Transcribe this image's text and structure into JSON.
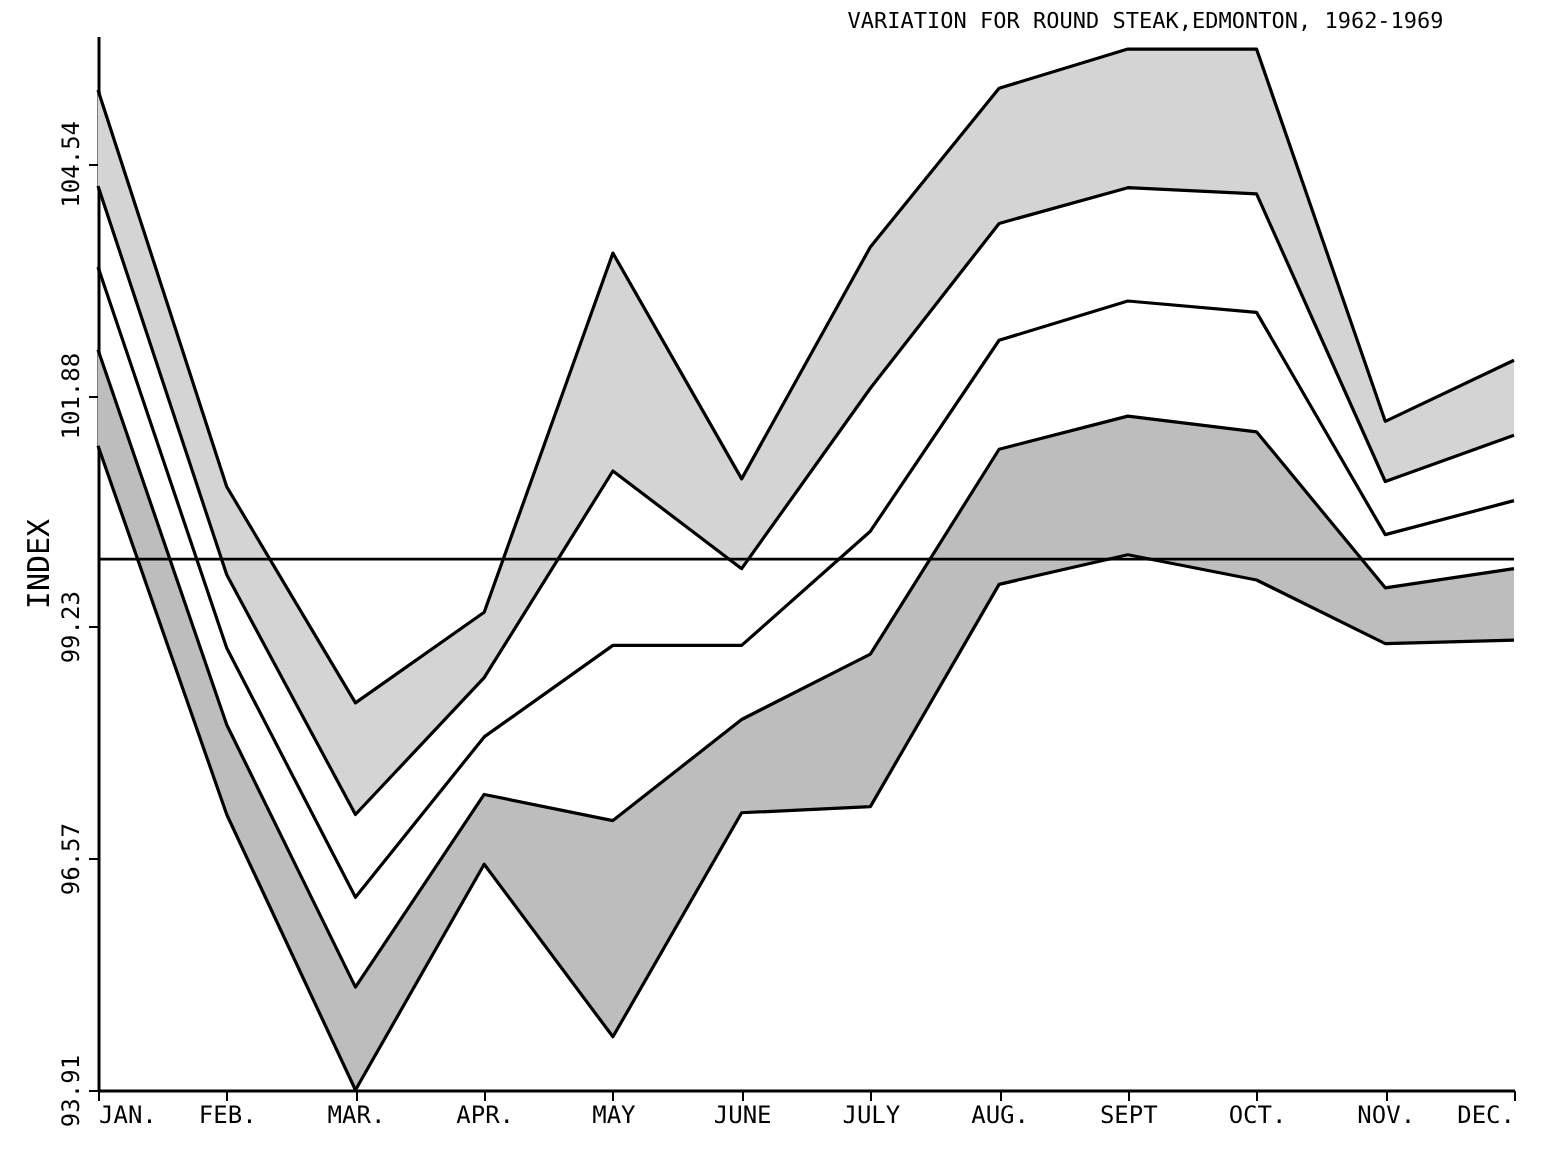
{
  "chart_data": {
    "type": "line",
    "title": "VARIATION FOR ROUND STEAK,EDMONTON, 1962-1969",
    "ylabel": "INDEX",
    "categories": [
      "JAN.",
      "FEB.",
      "MAR.",
      "APR.",
      "MAY",
      "JUNE",
      "JULY",
      "AUG.",
      "SEPT",
      "OCT.",
      "NOV.",
      "DEC."
    ],
    "series": [
      {
        "color": "#000000",
        "values": [
          105.38,
          100.83,
          98.35,
          99.39,
          103.51,
          100.92,
          103.58,
          105.4,
          105.85,
          105.85,
          101.58,
          102.28
        ],
        "upper": [
          105.38,
          100.83,
          98.35,
          99.39,
          103.51,
          100.92,
          103.58,
          105.4,
          105.85,
          105.85,
          101.58,
          102.28
        ],
        "lower": [
          104.28,
          99.82,
          97.07,
          98.64,
          101.01,
          99.89,
          101.96,
          103.85,
          104.26,
          104.19,
          100.89,
          101.42
        ]
      },
      {
        "color": "#000000",
        "values": [
          104.28,
          99.82,
          97.07,
          98.64,
          101.01,
          99.89,
          101.96,
          103.85,
          104.26,
          104.19,
          100.89,
          101.42
        ]
      },
      {
        "color": "#000000",
        "values": [
          103.35,
          98.98,
          96.12,
          97.96,
          99.01,
          99.01,
          100.32,
          102.51,
          102.96,
          102.83,
          100.28,
          100.67
        ]
      },
      {
        "color": "#000000",
        "values": [
          102.4,
          98.1,
          95.09,
          97.3,
          97.0,
          98.16,
          98.91,
          101.26,
          101.64,
          101.46,
          99.67,
          99.89
        ]
      },
      {
        "color": "#000000",
        "values": [
          101.3,
          97.07,
          93.91,
          96.5,
          94.52,
          97.09,
          97.16,
          99.71,
          100.05,
          99.76,
          99.03,
          99.07
        ],
        "upper": [
          102.4,
          98.1,
          95.09,
          97.3,
          97.0,
          98.16,
          98.91,
          101.26,
          101.64,
          101.46,
          99.67,
          99.89
        ],
        "lower": [
          101.3,
          97.07,
          93.91,
          96.5,
          94.52,
          97.09,
          97.16,
          99.71,
          100.05,
          99.76,
          99.03,
          99.07
        ]
      }
    ],
    "ylim": [
      93.91,
      106
    ],
    "yticks": [
      93.91,
      96.57,
      99.23,
      101.88,
      104.54
    ],
    "ref_lines": [
      {
        "axis": "y",
        "value": 100,
        "color": "#000000"
      }
    ],
    "grid": false,
    "legend": false,
    "marker": "none",
    "line_style": "solid"
  }
}
